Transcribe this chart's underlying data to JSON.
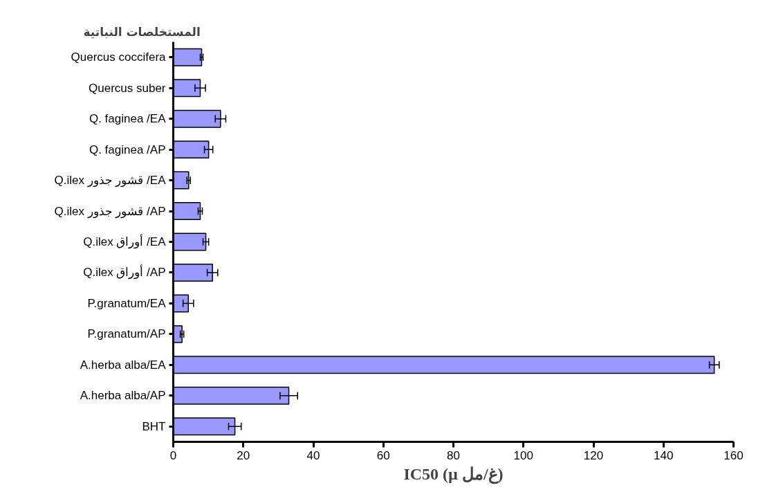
{
  "chart_data": {
    "type": "bar",
    "orientation": "horizontal",
    "ylabel": "المستخلصات النباتية",
    "xlabel": "IC50 (µ غ/مل)",
    "categories": [
      "Quercus coccifera",
      "Quercus suber",
      "Q. faginea /EA",
      "Q. faginea /AP",
      "Q.ilex قشور جذور /EA",
      "Q.ilex قشور جذور /AP",
      "Q.ilex أوراق /EA",
      "Q.ilex أوراق /AP",
      "P.granatum/EA",
      "P.granatum/AP",
      "A.herba alba/EA",
      "A.herba alba/AP",
      "BHT"
    ],
    "values": [
      8.1,
      7.7,
      13.5,
      10.1,
      4.4,
      7.7,
      9.3,
      11.2,
      4.3,
      2.5,
      154.5,
      33,
      17.6
    ],
    "errors": [
      0.4,
      1.5,
      1.5,
      1.2,
      0.5,
      0.6,
      0.8,
      1.5,
      1.5,
      0.5,
      1.4,
      2.5,
      1.8
    ],
    "color": "#9999ff",
    "xlim": [
      0,
      160
    ],
    "xticks": [
      0,
      20,
      40,
      60,
      80,
      100,
      120,
      140,
      160
    ],
    "grid": false
  }
}
